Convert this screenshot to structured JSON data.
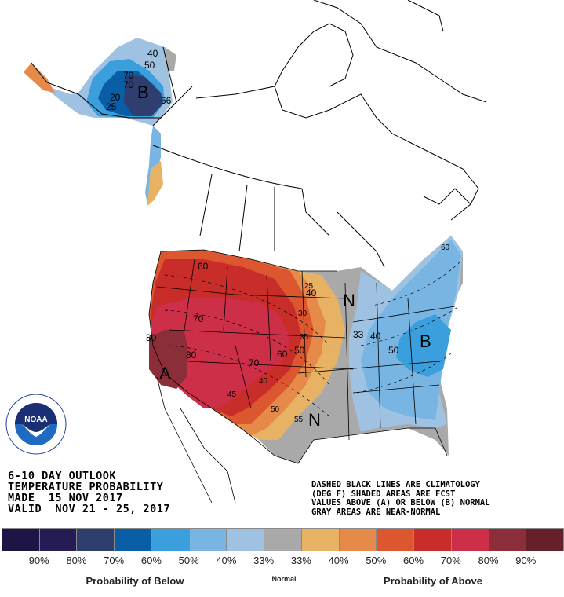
{
  "title_block": {
    "line1": "6-10 DAY OUTLOOK",
    "line2": "TEMPERATURE PROBABILITY",
    "line3": "MADE  15 NOV 2017",
    "line4": "VALID  NOV 21 - 25, 2017"
  },
  "notes": {
    "line1": "DASHED BLACK LINES ARE CLIMATOLOGY",
    "line2": "(DEG F) SHADED AREAS ARE FCST",
    "line3": "VALUES ABOVE (A) OR BELOW (B) NORMAL",
    "line4": "GRAY AREAS ARE NEAR-NORMAL"
  },
  "logo": {
    "text": "NOAA",
    "ring_text": "NATIONAL OCEANIC AND ATMOSPHERIC ADMINISTRATION · U.S. DEPARTMENT OF COMMERCE"
  },
  "legend": {
    "swatches": [
      {
        "color": "#1e1546",
        "label": "90%"
      },
      {
        "color": "#251b55",
        "label": "80%"
      },
      {
        "color": "#2e3e6e",
        "label": "70%"
      },
      {
        "color": "#0a5ea5",
        "label": "60%"
      },
      {
        "color": "#3a9fdc",
        "label": "50%"
      },
      {
        "color": "#78b5e2",
        "label": "40%"
      },
      {
        "color": "#a0c2e2",
        "label": "33%"
      },
      {
        "color": "#a9a9a9",
        "label": "33%"
      },
      {
        "color": "#e8b264",
        "label": "40%"
      },
      {
        "color": "#e58a48",
        "label": "50%"
      },
      {
        "color": "#dc5730",
        "label": "60%"
      },
      {
        "color": "#c82d29",
        "label": "70%"
      },
      {
        "color": "#cd2f48",
        "label": "80%"
      },
      {
        "color": "#8b2e3a",
        "label": "90%"
      },
      {
        "color": "#652029",
        "label": ""
      }
    ],
    "below_label": "Probability of Below",
    "normal_label": "Normal",
    "above_label": "Probability of Above"
  },
  "map": {
    "region_markers": [
      {
        "id": "alaska-below",
        "letter": "B"
      },
      {
        "id": "southwest-above",
        "letter": "A"
      },
      {
        "id": "east-below",
        "letter": "B"
      },
      {
        "id": "upper-midwest-normal",
        "letter": "N"
      },
      {
        "id": "texas-normal",
        "letter": "N"
      }
    ],
    "probability_labels": [
      "40",
      "50",
      "60",
      "70",
      "3",
      "5",
      "66",
      "20",
      "25",
      "60",
      "70",
      "80",
      "80",
      "70",
      "60",
      "50",
      "25",
      "40",
      "30",
      "35",
      "40",
      "45",
      "50",
      "55",
      "60",
      "33",
      "40",
      "50",
      "60"
    ]
  }
}
